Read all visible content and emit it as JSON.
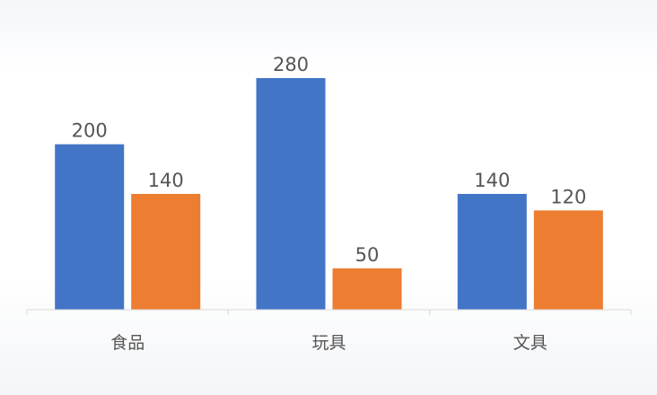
{
  "chart_data": {
    "type": "bar",
    "categories": [
      "食品",
      "玩具",
      "文具"
    ],
    "series": [
      {
        "values": [
          200,
          280,
          140
        ],
        "color": "#4275c6"
      },
      {
        "values": [
          140,
          50,
          120
        ],
        "color": "#ed7d31"
      }
    ],
    "ylim": [
      0,
      300
    ],
    "grid": false,
    "legend": "none"
  }
}
